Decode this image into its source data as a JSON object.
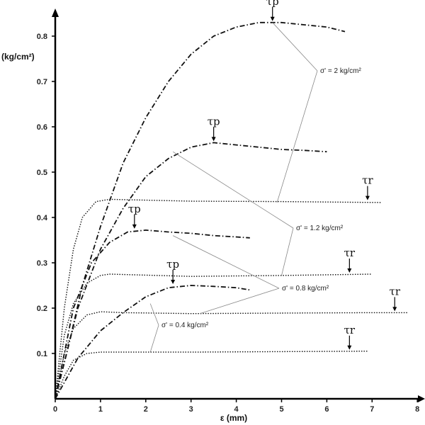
{
  "chart_data": {
    "type": "line",
    "title": "",
    "xlabel": "ε (mm)",
    "ylabel": "(kg/cm²)",
    "xlim": [
      0,
      8
    ],
    "ylim": [
      0,
      0.85
    ],
    "x_ticks": [
      "0",
      "1",
      "2",
      "3",
      "4",
      "5",
      "6",
      "7",
      "8"
    ],
    "y_ticks": [
      "0.1",
      "0.2",
      "0.3",
      "0.4",
      "0.5",
      "0.6",
      "0.7",
      "0.8"
    ],
    "series": [
      {
        "name": "σ' = 2 kg/cm²",
        "peak_style": "dash-dot",
        "peak": [
          [
            0,
            0
          ],
          [
            0.3,
            0.12
          ],
          [
            0.6,
            0.25
          ],
          [
            1,
            0.38
          ],
          [
            1.5,
            0.52
          ],
          [
            2,
            0.62
          ],
          [
            2.5,
            0.7
          ],
          [
            3,
            0.76
          ],
          [
            3.5,
            0.8
          ],
          [
            4,
            0.82
          ],
          [
            4.5,
            0.83
          ],
          [
            5,
            0.83
          ],
          [
            5.5,
            0.825
          ],
          [
            6,
            0.82
          ],
          [
            6.4,
            0.81
          ]
        ],
        "peak_marker": {
          "x": 4.8,
          "y": 0.83
        },
        "residual": [
          [
            0,
            0
          ],
          [
            0.2,
            0.2
          ],
          [
            0.4,
            0.33
          ],
          [
            0.6,
            0.4
          ],
          [
            0.9,
            0.435
          ],
          [
            1.2,
            0.44
          ],
          [
            3,
            0.436
          ],
          [
            5,
            0.435
          ],
          [
            7.2,
            0.433
          ]
        ],
        "residual_marker": {
          "x": 6.9,
          "y": 0.435
        }
      },
      {
        "name": "σ' = 1.2 kg/cm²",
        "peak_style": "dash-dot",
        "peak": [
          [
            0,
            0
          ],
          [
            0.5,
            0.2
          ],
          [
            1,
            0.33
          ],
          [
            1.5,
            0.42
          ],
          [
            2,
            0.49
          ],
          [
            2.5,
            0.53
          ],
          [
            3,
            0.555
          ],
          [
            3.5,
            0.565
          ],
          [
            4,
            0.56
          ],
          [
            4.5,
            0.555
          ],
          [
            5,
            0.55
          ],
          [
            5.5,
            0.548
          ],
          [
            6,
            0.545
          ]
        ],
        "peak_marker": {
          "x": 3.5,
          "y": 0.565
        },
        "residual": [
          [
            0,
            0
          ],
          [
            0.2,
            0.14
          ],
          [
            0.4,
            0.21
          ],
          [
            0.7,
            0.255
          ],
          [
            1,
            0.272
          ],
          [
            1.2,
            0.275
          ],
          [
            3,
            0.27
          ],
          [
            5,
            0.272
          ],
          [
            7,
            0.275
          ]
        ],
        "residual_marker": {
          "x": 6.5,
          "y": 0.275
        }
      },
      {
        "name": "σ' = 0.8 kg/cm²",
        "peak_style": "dash-dot",
        "peak": [
          [
            0,
            0
          ],
          [
            0.4,
            0.2
          ],
          [
            0.8,
            0.3
          ],
          [
            1.2,
            0.345
          ],
          [
            1.6,
            0.368
          ],
          [
            2,
            0.372
          ],
          [
            2.5,
            0.368
          ],
          [
            3,
            0.365
          ],
          [
            3.5,
            0.36
          ],
          [
            4,
            0.357
          ],
          [
            4.3,
            0.355
          ]
        ],
        "peak_marker": {
          "x": 1.75,
          "y": 0.372
        },
        "residual": [
          [
            0,
            0
          ],
          [
            0.2,
            0.1
          ],
          [
            0.4,
            0.155
          ],
          [
            0.7,
            0.185
          ],
          [
            1,
            0.192
          ],
          [
            1.5,
            0.19
          ],
          [
            3,
            0.188
          ],
          [
            5,
            0.189
          ],
          [
            7,
            0.19
          ],
          [
            7.8,
            0.19
          ]
        ],
        "residual_marker": {
          "x": 7.5,
          "y": 0.19
        }
      },
      {
        "name": "σ' = 0.4 kg/cm²",
        "peak_style": "dash-dot",
        "peak": [
          [
            0,
            0
          ],
          [
            0.5,
            0.09
          ],
          [
            1,
            0.15
          ],
          [
            1.5,
            0.19
          ],
          [
            2,
            0.225
          ],
          [
            2.5,
            0.245
          ],
          [
            3,
            0.25
          ],
          [
            3.5,
            0.248
          ],
          [
            4,
            0.245
          ],
          [
            4.3,
            0.24
          ]
        ],
        "peak_marker": {
          "x": 2.6,
          "y": 0.25
        },
        "residual": [
          [
            0,
            0
          ],
          [
            0.2,
            0.05
          ],
          [
            0.4,
            0.085
          ],
          [
            0.7,
            0.1
          ],
          [
            1,
            0.103
          ],
          [
            3,
            0.103
          ],
          [
            5,
            0.104
          ],
          [
            6.9,
            0.105
          ]
        ],
        "residual_marker": {
          "x": 6.5,
          "y": 0.105
        }
      }
    ],
    "peak_symbol": "τp",
    "residual_symbol": "τr",
    "legend": "annotations"
  }
}
